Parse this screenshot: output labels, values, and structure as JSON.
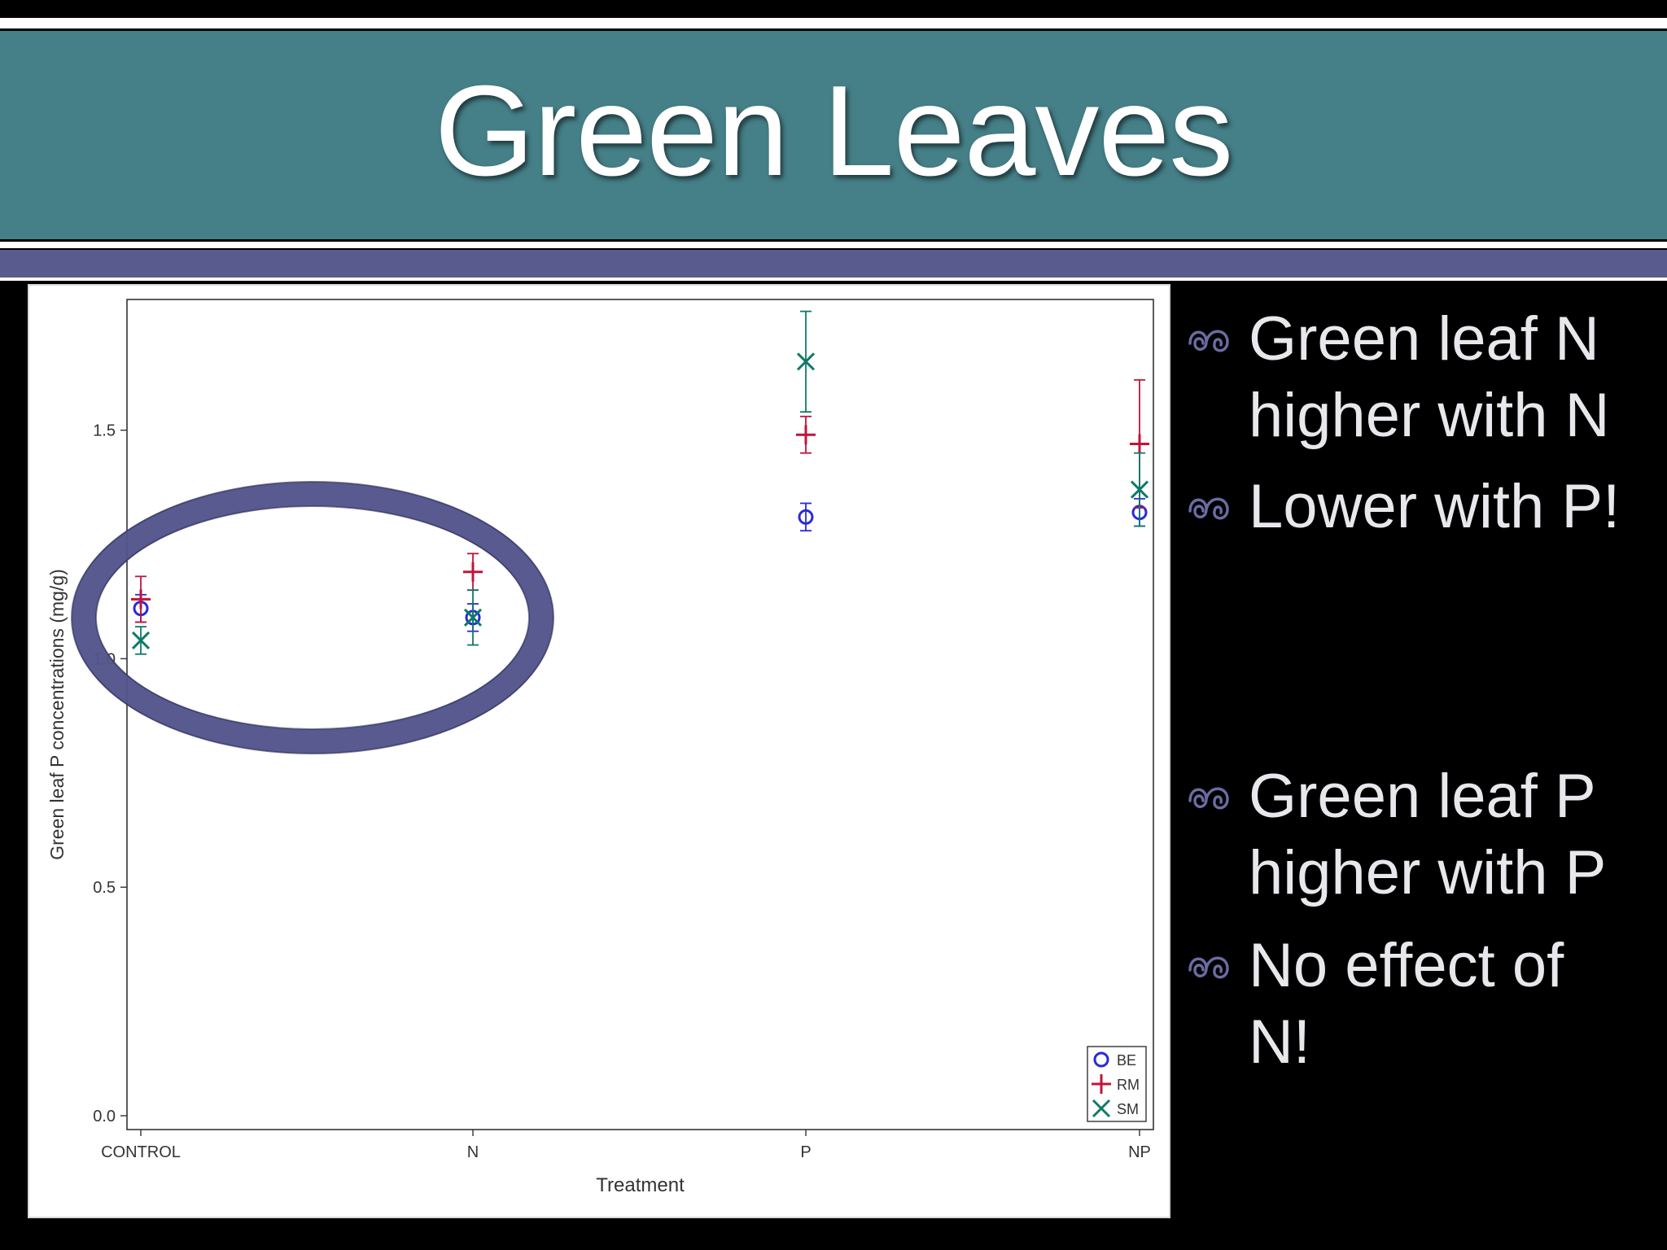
{
  "slide": {
    "title": "Green Leaves",
    "bullets": [
      {
        "lines": [
          "Green leaf N",
          "higher with N"
        ]
      },
      {
        "lines": [
          "Lower with P!"
        ]
      },
      {
        "lines": [
          "Green leaf P",
          "higher with P"
        ]
      },
      {
        "lines": [
          "No effect of",
          "N!"
        ]
      }
    ]
  },
  "colors": {
    "title_band": "#457f87",
    "accent_band": "#595a8d",
    "BE": "#2a2ad8",
    "RM": "#c0143c",
    "SM": "#0e7a68",
    "highlight_ellipse": "#54558c"
  },
  "chart_data": {
    "type": "scatter",
    "xlabel": "Treatment",
    "ylabel": "Green leaf P concentrations (mg/g)",
    "categories": [
      "CONTROL",
      "N",
      "P",
      "NP"
    ],
    "ylim": [
      0,
      1.8
    ],
    "yticks": [
      0.0,
      0.5,
      1.0,
      1.5
    ],
    "ytick_labels": [
      "0.0",
      "0.5",
      "1.0",
      "1.5"
    ],
    "grid": false,
    "legend": "bottom-right",
    "series": [
      {
        "name": "BE",
        "marker": "circle",
        "values": [
          1.11,
          1.09,
          1.31,
          1.32
        ],
        "err": [
          0.03,
          0.03,
          0.03,
          0.03
        ]
      },
      {
        "name": "RM",
        "marker": "plus",
        "values": [
          1.13,
          1.19,
          1.49,
          1.47
        ],
        "err": [
          0.05,
          0.04,
          0.04,
          0.14
        ]
      },
      {
        "name": "SM",
        "marker": "x",
        "values": [
          1.04,
          1.09,
          1.65,
          1.37
        ],
        "err": [
          0.03,
          0.06,
          0.11,
          0.08
        ]
      }
    ],
    "annotation": {
      "shape": "ellipse",
      "around_categories": [
        "CONTROL",
        "N"
      ]
    }
  }
}
